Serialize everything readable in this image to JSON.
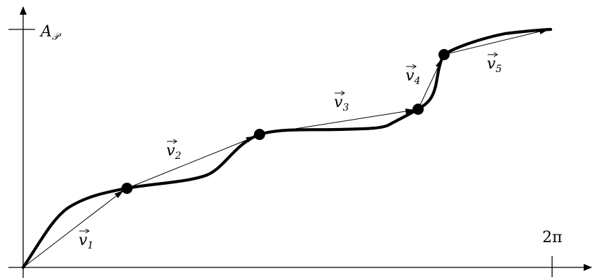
{
  "axes": {
    "y_label": {
      "main": "A",
      "sub": "𝒫"
    },
    "x_tick_label": "2π"
  },
  "vectors": [
    {
      "id": "v1",
      "label": {
        "main": "v",
        "sub": "1"
      }
    },
    {
      "id": "v2",
      "label": {
        "main": "v",
        "sub": "2"
      }
    },
    {
      "id": "v3",
      "label": {
        "main": "v",
        "sub": "3"
      }
    },
    {
      "id": "v4",
      "label": {
        "main": "v",
        "sub": "4"
      }
    },
    {
      "id": "v5",
      "label": {
        "main": "v",
        "sub": "5"
      }
    }
  ],
  "colors": {
    "ink": "#000000",
    "background": "#ffffff"
  }
}
